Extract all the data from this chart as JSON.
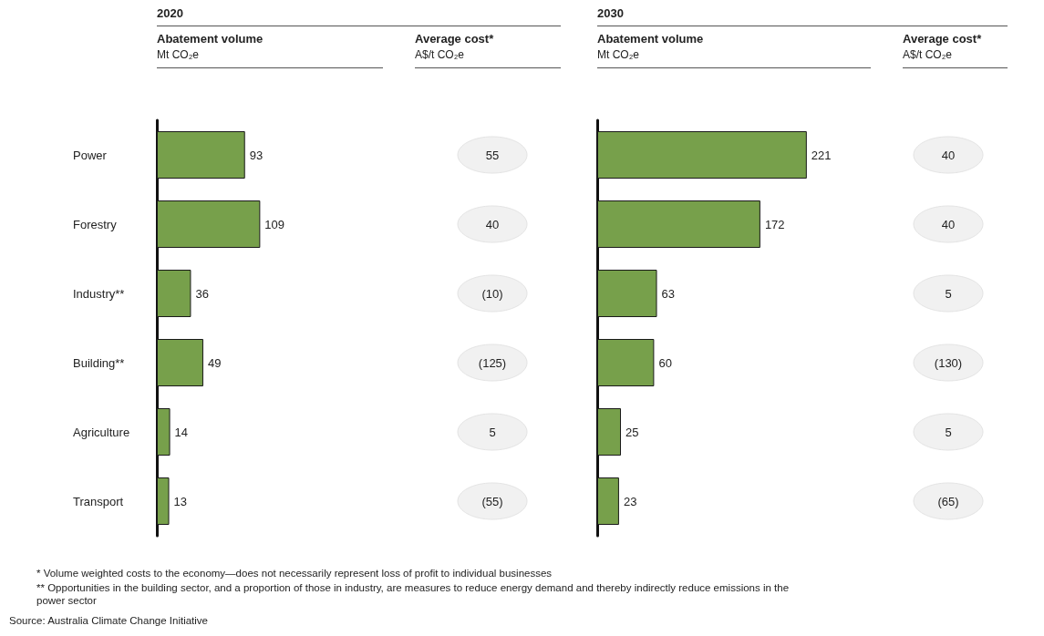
{
  "chart_data": [
    {
      "type": "bar",
      "orientation": "horizontal",
      "title": "2020",
      "subtitle": "Abatement volume",
      "xlabel": "Mt CO₂e",
      "categories": [
        "Power",
        "Forestry",
        "Industry**",
        "Building**",
        "Agriculture",
        "Transport"
      ],
      "values": [
        93,
        109,
        36,
        49,
        14,
        13
      ],
      "color": "#77a04b",
      "data_labels": true,
      "tick_labels": "y",
      "annotations": [
        "* Volume weighted costs to the economy—does not necessarily represent loss of profit to individual businesses",
        "** Opportunities in the building sector, and a proportion of those in industry, are measures to reduce energy demand and thereby indirectly reduce emissions in the power sector",
        "Source: Australia Climate Change Initiative"
      ]
    },
    {
      "type": "other",
      "title": "Average cost*",
      "xlabel": "A$/t CO₂e",
      "values": [
        55,
        40,
        -10,
        -125,
        5,
        -55
      ],
      "value_labels": [
        "55",
        "40",
        "(10)",
        "(125)",
        "5",
        "(55)"
      ]
    },
    {
      "type": "bar",
      "orientation": "horizontal",
      "title": "2030",
      "subtitle": "Abatement volume",
      "xlabel": "Mt CO₂e",
      "categories": [
        null,
        null,
        null,
        null,
        null,
        null
      ],
      "values": [
        221,
        172,
        63,
        60,
        25,
        23
      ],
      "color": "#77a04b",
      "data_labels": true,
      "tick_labels": false
    },
    {
      "type": "other",
      "title": "Average cost*",
      "xlabel": "A$/t CO₂e",
      "values": [
        40,
        40,
        5,
        -130,
        5,
        -65
      ],
      "value_labels": [
        "40",
        "40",
        "5",
        "(130)",
        "5",
        "(65)"
      ]
    }
  ]
}
